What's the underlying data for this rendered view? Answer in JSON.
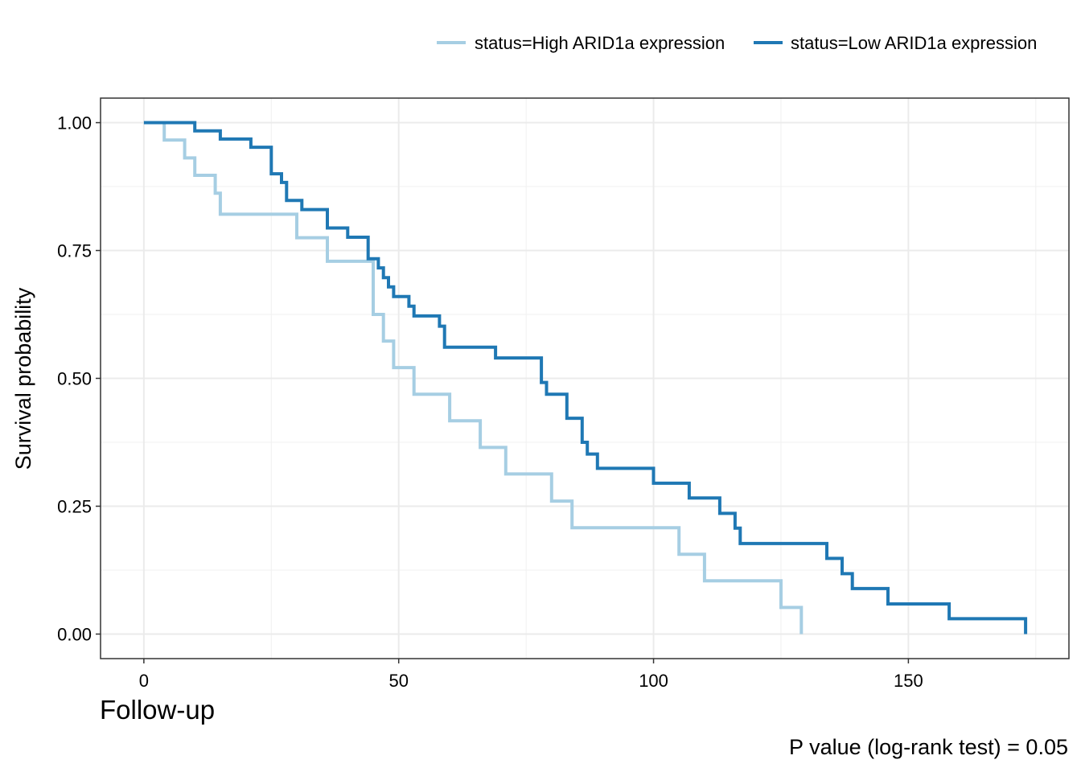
{
  "chart_data": {
    "type": "line",
    "subtype": "kaplan-meier-step",
    "xlabel": "Follow-up",
    "ylabel": "Survival probability",
    "caption": "P value (log-rank test) = 0.05",
    "xlim": [
      -8.5,
      181.5
    ],
    "ylim": [
      -0.048,
      1.048
    ],
    "x_ticks": [
      0,
      50,
      100,
      150
    ],
    "x_tick_labels": [
      "0",
      "50",
      "100",
      "150"
    ],
    "y_ticks": [
      0,
      0.25,
      0.5,
      0.75,
      1.0
    ],
    "y_tick_labels": [
      "0.00",
      "0.25",
      "0.50",
      "0.75",
      "1.00"
    ],
    "grid": true,
    "legend_position": "top-right",
    "series": [
      {
        "name": "status=High ARID1a expression",
        "color": "#a6cee3",
        "points": [
          [
            0,
            1.0
          ],
          [
            4,
            1.0
          ],
          [
            4,
            0.966
          ],
          [
            8,
            0.966
          ],
          [
            8,
            0.931
          ],
          [
            10,
            0.931
          ],
          [
            10,
            0.897
          ],
          [
            14,
            0.897
          ],
          [
            14,
            0.862
          ],
          [
            15,
            0.862
          ],
          [
            15,
            0.821
          ],
          [
            30,
            0.821
          ],
          [
            30,
            0.775
          ],
          [
            36,
            0.775
          ],
          [
            36,
            0.729
          ],
          [
            45,
            0.729
          ],
          [
            45,
            0.625
          ],
          [
            47,
            0.625
          ],
          [
            47,
            0.573
          ],
          [
            49,
            0.573
          ],
          [
            49,
            0.521
          ],
          [
            53,
            0.521
          ],
          [
            53,
            0.469
          ],
          [
            60,
            0.469
          ],
          [
            60,
            0.417
          ],
          [
            66,
            0.417
          ],
          [
            66,
            0.365
          ],
          [
            71,
            0.365
          ],
          [
            71,
            0.313
          ],
          [
            80,
            0.313
          ],
          [
            80,
            0.26
          ],
          [
            84,
            0.26
          ],
          [
            84,
            0.208
          ],
          [
            105,
            0.208
          ],
          [
            105,
            0.156
          ],
          [
            110,
            0.156
          ],
          [
            110,
            0.104
          ],
          [
            125,
            0.104
          ],
          [
            125,
            0.052
          ],
          [
            129,
            0.052
          ],
          [
            129,
            0.0
          ]
        ]
      },
      {
        "name": "status=Low ARID1a expression",
        "color": "#1f78b4",
        "points": [
          [
            0,
            1.0
          ],
          [
            10,
            1.0
          ],
          [
            10,
            0.984
          ],
          [
            15,
            0.984
          ],
          [
            15,
            0.968
          ],
          [
            21,
            0.968
          ],
          [
            21,
            0.952
          ],
          [
            25,
            0.952
          ],
          [
            25,
            0.9
          ],
          [
            27,
            0.9
          ],
          [
            27,
            0.883
          ],
          [
            28,
            0.883
          ],
          [
            28,
            0.848
          ],
          [
            31,
            0.848
          ],
          [
            31,
            0.83
          ],
          [
            36,
            0.83
          ],
          [
            36,
            0.794
          ],
          [
            40,
            0.794
          ],
          [
            40,
            0.776
          ],
          [
            44,
            0.776
          ],
          [
            44,
            0.734
          ],
          [
            46,
            0.734
          ],
          [
            46,
            0.716
          ],
          [
            47,
            0.716
          ],
          [
            47,
            0.697
          ],
          [
            48,
            0.697
          ],
          [
            48,
            0.679
          ],
          [
            49,
            0.679
          ],
          [
            49,
            0.66
          ],
          [
            52,
            0.66
          ],
          [
            52,
            0.641
          ],
          [
            53,
            0.641
          ],
          [
            53,
            0.622
          ],
          [
            58,
            0.622
          ],
          [
            58,
            0.602
          ],
          [
            59,
            0.602
          ],
          [
            59,
            0.561
          ],
          [
            69,
            0.561
          ],
          [
            69,
            0.54
          ],
          [
            78,
            0.54
          ],
          [
            78,
            0.492
          ],
          [
            79,
            0.492
          ],
          [
            79,
            0.469
          ],
          [
            83,
            0.469
          ],
          [
            83,
            0.422
          ],
          [
            86,
            0.422
          ],
          [
            86,
            0.375
          ],
          [
            87,
            0.375
          ],
          [
            87,
            0.352
          ],
          [
            89,
            0.352
          ],
          [
            89,
            0.324
          ],
          [
            100,
            0.324
          ],
          [
            100,
            0.295
          ],
          [
            107,
            0.295
          ],
          [
            107,
            0.266
          ],
          [
            113,
            0.266
          ],
          [
            113,
            0.236
          ],
          [
            116,
            0.236
          ],
          [
            116,
            0.207
          ],
          [
            117,
            0.207
          ],
          [
            117,
            0.177
          ],
          [
            134,
            0.177
          ],
          [
            134,
            0.148
          ],
          [
            137,
            0.148
          ],
          [
            137,
            0.118
          ],
          [
            139,
            0.118
          ],
          [
            139,
            0.089
          ],
          [
            146,
            0.089
          ],
          [
            146,
            0.059
          ],
          [
            158,
            0.059
          ],
          [
            158,
            0.03
          ],
          [
            173,
            0.03
          ],
          [
            173,
            0.0
          ]
        ]
      }
    ]
  }
}
